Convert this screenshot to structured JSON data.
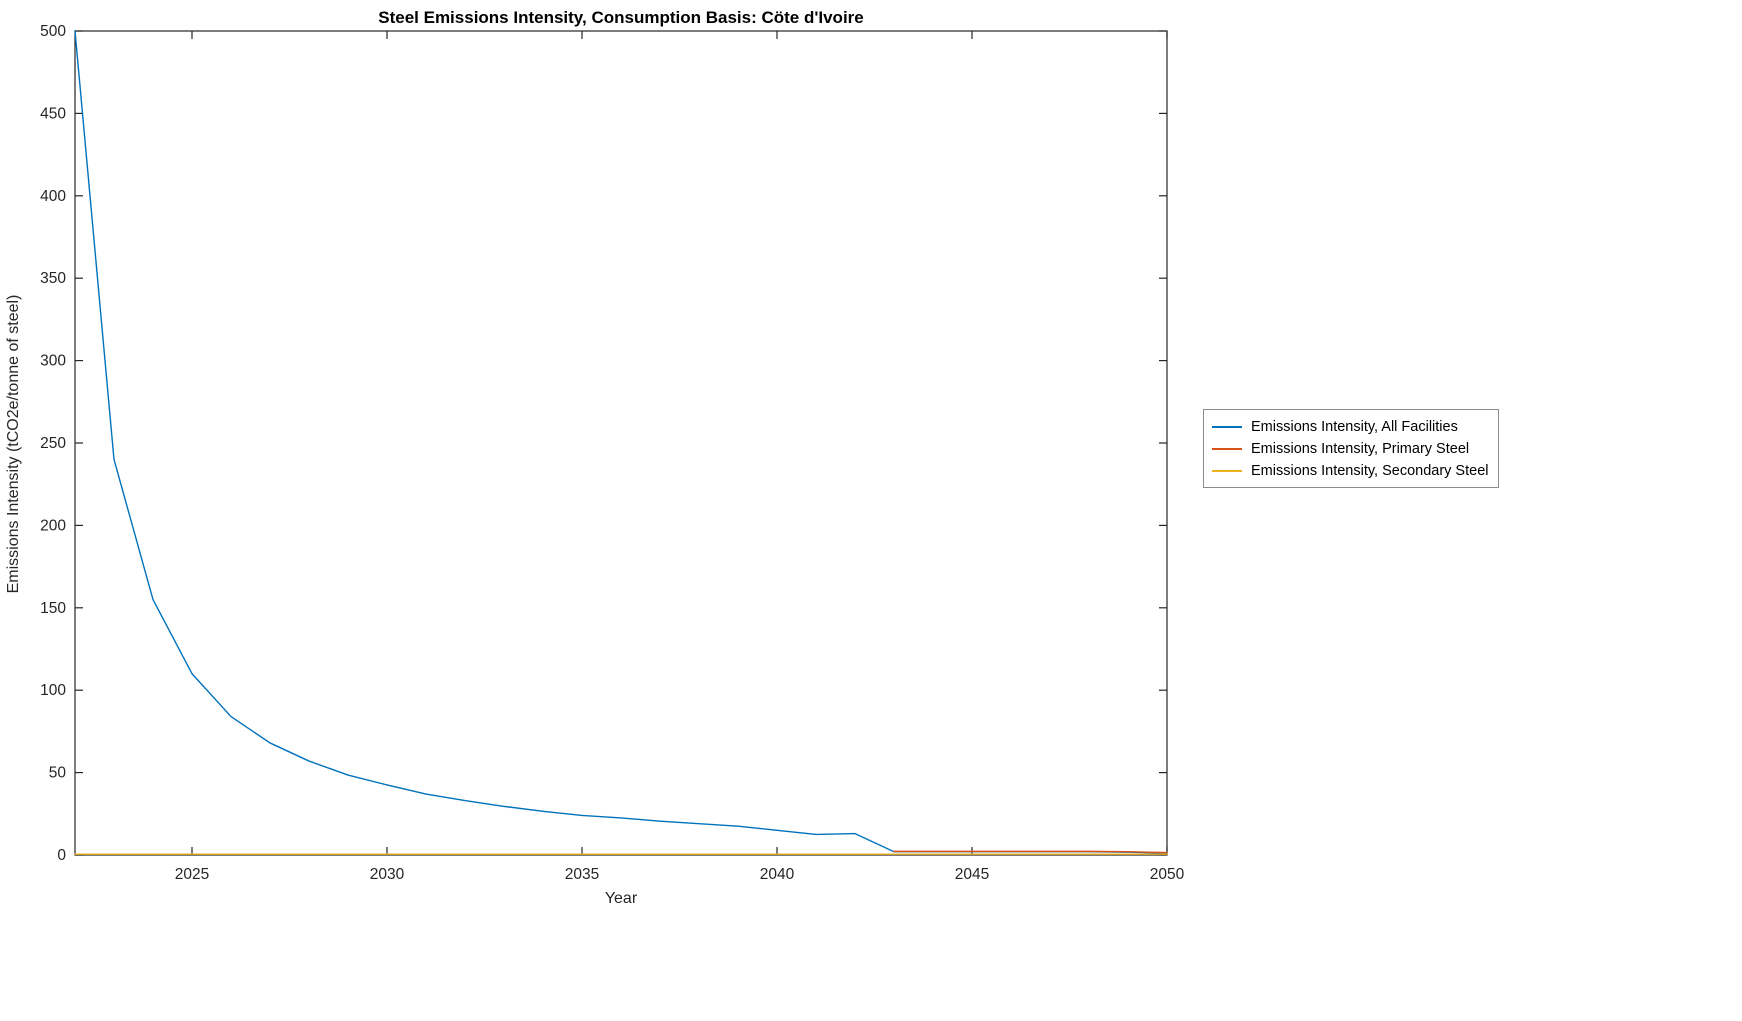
{
  "chart_data": {
    "type": "line",
    "title": "Steel Emissions Intensity, Consumption Basis: Cöte d'Ivoire",
    "xlabel": "Year",
    "ylabel": "Emissions Intensity (tCO2e/tonne of steel)",
    "xlim": [
      2022,
      2050
    ],
    "ylim": [
      0,
      500
    ],
    "xticks": [
      2025,
      2030,
      2035,
      2040,
      2045,
      2050
    ],
    "yticks": [
      0,
      50,
      100,
      150,
      200,
      250,
      300,
      350,
      400,
      450,
      500
    ],
    "grid": false,
    "legend_position": "right-outside",
    "axis_color": "#262626",
    "series": [
      {
        "name": "Emissions Intensity, All Facilities",
        "color": "#0072BD",
        "x": [
          2022,
          2023,
          2024,
          2025,
          2026,
          2027,
          2028,
          2029,
          2030,
          2031,
          2032,
          2033,
          2034,
          2035,
          2036,
          2037,
          2038,
          2039,
          2040,
          2041,
          2042,
          2043,
          2044,
          2045,
          2046,
          2047,
          2048,
          2049,
          2050
        ],
        "y": [
          500,
          240,
          155,
          110,
          84,
          68,
          57,
          48.5,
          42.5,
          37,
          33,
          29.5,
          26.5,
          24,
          22.5,
          20.5,
          19,
          17.5,
          15,
          12.5,
          13,
          2,
          2,
          2,
          2,
          2,
          2,
          1.7,
          1.2
        ]
      },
      {
        "name": "Emissions Intensity, Primary Steel",
        "color": "#D95319",
        "x": [
          2043,
          2044,
          2045,
          2046,
          2047,
          2048,
          2049,
          2050
        ],
        "y": [
          2.2,
          2.2,
          2.2,
          2.2,
          2.2,
          2.2,
          2,
          1.5
        ]
      },
      {
        "name": "Emissions Intensity, Secondary Steel",
        "color": "#EDB120",
        "x": [
          2022,
          2050
        ],
        "y": [
          0.5,
          0.5
        ]
      }
    ]
  }
}
